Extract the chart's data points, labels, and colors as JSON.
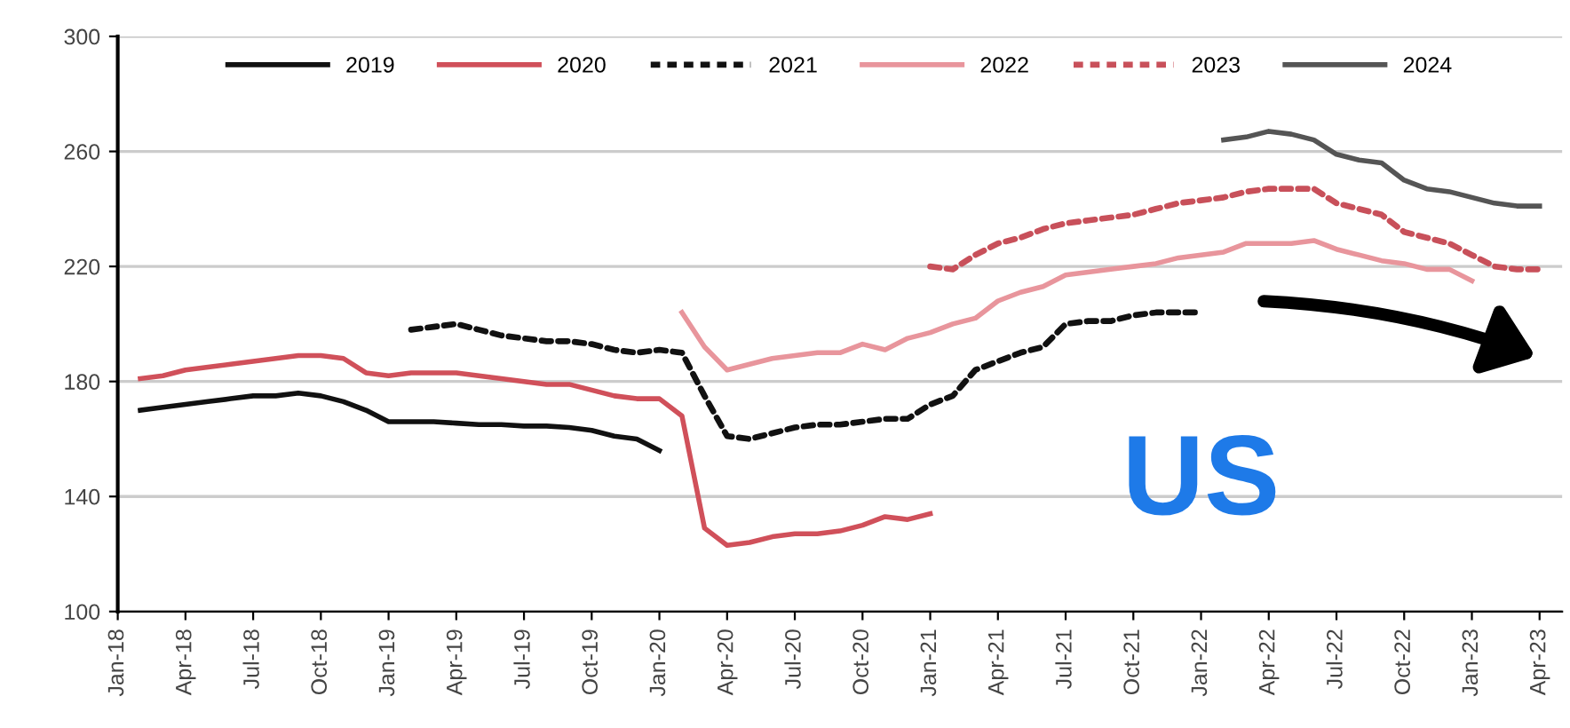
{
  "chart_data": {
    "type": "line",
    "xlim": [
      "2018-01",
      "2023-05"
    ],
    "ylim": [
      100,
      300
    ],
    "yticks": [
      100,
      140,
      180,
      220,
      260,
      300
    ],
    "xticks": [
      {
        "value": "2018-01",
        "label": "Jan-18"
      },
      {
        "value": "2018-04",
        "label": "Apr-18"
      },
      {
        "value": "2018-07",
        "label": "Jul-18"
      },
      {
        "value": "2018-10",
        "label": "Oct-18"
      },
      {
        "value": "2019-01",
        "label": "Jan-19"
      },
      {
        "value": "2019-04",
        "label": "Apr-19"
      },
      {
        "value": "2019-07",
        "label": "Jul-19"
      },
      {
        "value": "2019-10",
        "label": "Oct-19"
      },
      {
        "value": "2020-01",
        "label": "Jan-20"
      },
      {
        "value": "2020-04",
        "label": "Apr-20"
      },
      {
        "value": "2020-07",
        "label": "Jul-20"
      },
      {
        "value": "2020-10",
        "label": "Oct-20"
      },
      {
        "value": "2021-01",
        "label": "Jan-21"
      },
      {
        "value": "2021-04",
        "label": "Apr-21"
      },
      {
        "value": "2021-07",
        "label": "Jul-21"
      },
      {
        "value": "2021-10",
        "label": "Oct-21"
      },
      {
        "value": "2022-01",
        "label": "Jan-22"
      },
      {
        "value": "2022-04",
        "label": "Apr-22"
      },
      {
        "value": "2022-07",
        "label": "Jul-22"
      },
      {
        "value": "2022-10",
        "label": "Oct-22"
      },
      {
        "value": "2023-01",
        "label": "Jan-23"
      },
      {
        "value": "2023-04",
        "label": "Apr-23"
      }
    ],
    "grid": "y",
    "legend": "top",
    "marker": "none",
    "annotations": [
      "US"
    ],
    "series": [
      {
        "name": "2019",
        "color": "#111111",
        "line_style": "solid",
        "x": [
          "2018-02",
          "2018-03",
          "2018-04",
          "2018-05",
          "2018-06",
          "2018-07",
          "2018-08",
          "2018-09",
          "2018-10",
          "2018-11",
          "2018-12",
          "2019-01",
          "2019-02",
          "2019-03",
          "2019-04",
          "2019-05",
          "2019-06",
          "2019-07",
          "2019-08",
          "2019-09",
          "2019-10",
          "2019-11",
          "2019-12",
          "2020-01"
        ],
        "values": [
          170,
          171,
          172,
          173,
          174,
          175,
          175,
          176,
          175,
          173,
          170,
          166,
          166,
          166,
          165.5,
          165,
          165,
          164.5,
          164.5,
          164,
          163,
          161,
          160,
          156
        ]
      },
      {
        "name": "2020",
        "color": "#d0505a",
        "line_style": "solid",
        "x": [
          "2018-02",
          "2018-03",
          "2018-04",
          "2018-05",
          "2018-06",
          "2018-07",
          "2018-08",
          "2018-09",
          "2018-10",
          "2018-11",
          "2018-12",
          "2019-01",
          "2019-02",
          "2019-03",
          "2019-04",
          "2019-05",
          "2019-06",
          "2019-07",
          "2019-08",
          "2019-09",
          "2019-10",
          "2019-11",
          "2019-12",
          "2020-01",
          "2020-02",
          "2020-03",
          "2020-04",
          "2020-05",
          "2020-06",
          "2020-07",
          "2020-08",
          "2020-09",
          "2020-10",
          "2020-11",
          "2020-12",
          "2021-01"
        ],
        "values": [
          181,
          182,
          184,
          185,
          186,
          187,
          188,
          189,
          189,
          188,
          183,
          182,
          183,
          183,
          183,
          182,
          181,
          180,
          179,
          179,
          177,
          175,
          174,
          174,
          168,
          129,
          123,
          124,
          126,
          127,
          127,
          128,
          130,
          133,
          132,
          134
        ]
      },
      {
        "name": "2021",
        "color": "#111111",
        "line_style": "dashed",
        "x": [
          "2019-02",
          "2019-03",
          "2019-04",
          "2019-05",
          "2019-06",
          "2019-07",
          "2019-08",
          "2019-09",
          "2019-10",
          "2019-11",
          "2019-12",
          "2020-01",
          "2020-02",
          "2020-03",
          "2020-04",
          "2020-05",
          "2020-06",
          "2020-07",
          "2020-08",
          "2020-09",
          "2020-10",
          "2020-11",
          "2020-12",
          "2021-01",
          "2021-02",
          "2021-03",
          "2021-04",
          "2021-05",
          "2021-06",
          "2021-07",
          "2021-08",
          "2021-09",
          "2021-10",
          "2021-11",
          "2021-12",
          "2022-01"
        ],
        "values": [
          198,
          199,
          200,
          198,
          196,
          195,
          194,
          194,
          193,
          191,
          190,
          191,
          190,
          175,
          161,
          160,
          162,
          164,
          165,
          165,
          166,
          167,
          167,
          172,
          175,
          184,
          187,
          190,
          192,
          200,
          201,
          201,
          203,
          204,
          204,
          204
        ]
      },
      {
        "name": "2022",
        "color": "#e8959c",
        "line_style": "solid",
        "x": [
          "2020-02",
          "2020-03",
          "2020-04",
          "2020-05",
          "2020-06",
          "2020-07",
          "2020-08",
          "2020-09",
          "2020-10",
          "2020-11",
          "2020-12",
          "2021-01",
          "2021-02",
          "2021-03",
          "2021-04",
          "2021-05",
          "2021-06",
          "2021-07",
          "2021-08",
          "2021-09",
          "2021-10",
          "2021-11",
          "2021-12",
          "2022-01",
          "2022-02",
          "2022-03",
          "2022-04",
          "2022-05",
          "2022-06",
          "2022-07",
          "2022-08",
          "2022-09",
          "2022-10",
          "2022-11",
          "2022-12",
          "2023-01"
        ],
        "values": [
          204,
          192,
          184,
          186,
          188,
          189,
          190,
          190,
          193,
          191,
          195,
          197,
          200,
          202,
          208,
          211,
          213,
          217,
          218,
          219,
          220,
          221,
          223,
          224,
          225,
          228,
          228,
          228,
          229,
          226,
          224,
          222,
          221,
          219,
          219,
          215
        ]
      },
      {
        "name": "2023",
        "color": "#c8505a",
        "line_style": "dashed",
        "x": [
          "2021-01",
          "2021-02",
          "2021-03",
          "2021-04",
          "2021-05",
          "2021-06",
          "2021-07",
          "2021-08",
          "2021-09",
          "2021-10",
          "2021-11",
          "2021-12",
          "2022-01",
          "2022-02",
          "2022-03",
          "2022-04",
          "2022-05",
          "2022-06",
          "2022-07",
          "2022-08",
          "2022-09",
          "2022-10",
          "2022-11",
          "2022-12",
          "2023-01",
          "2023-02",
          "2023-03",
          "2023-04"
        ],
        "values": [
          220,
          219,
          224,
          228,
          230,
          233,
          235,
          236,
          237,
          238,
          240,
          242,
          243,
          244,
          246,
          247,
          247,
          247,
          242,
          240,
          238,
          232,
          230,
          228,
          224,
          220,
          219,
          219
        ]
      },
      {
        "name": "2024",
        "color": "#555555",
        "line_style": "solid",
        "x": [
          "2022-02",
          "2022-03",
          "2022-04",
          "2022-05",
          "2022-06",
          "2022-07",
          "2022-08",
          "2022-09",
          "2022-10",
          "2022-11",
          "2022-12",
          "2023-01",
          "2023-02",
          "2023-03",
          "2023-04"
        ],
        "values": [
          264,
          265,
          267,
          266,
          264,
          259,
          257,
          256,
          250,
          247,
          246,
          244,
          242,
          241,
          241
        ]
      }
    ]
  }
}
